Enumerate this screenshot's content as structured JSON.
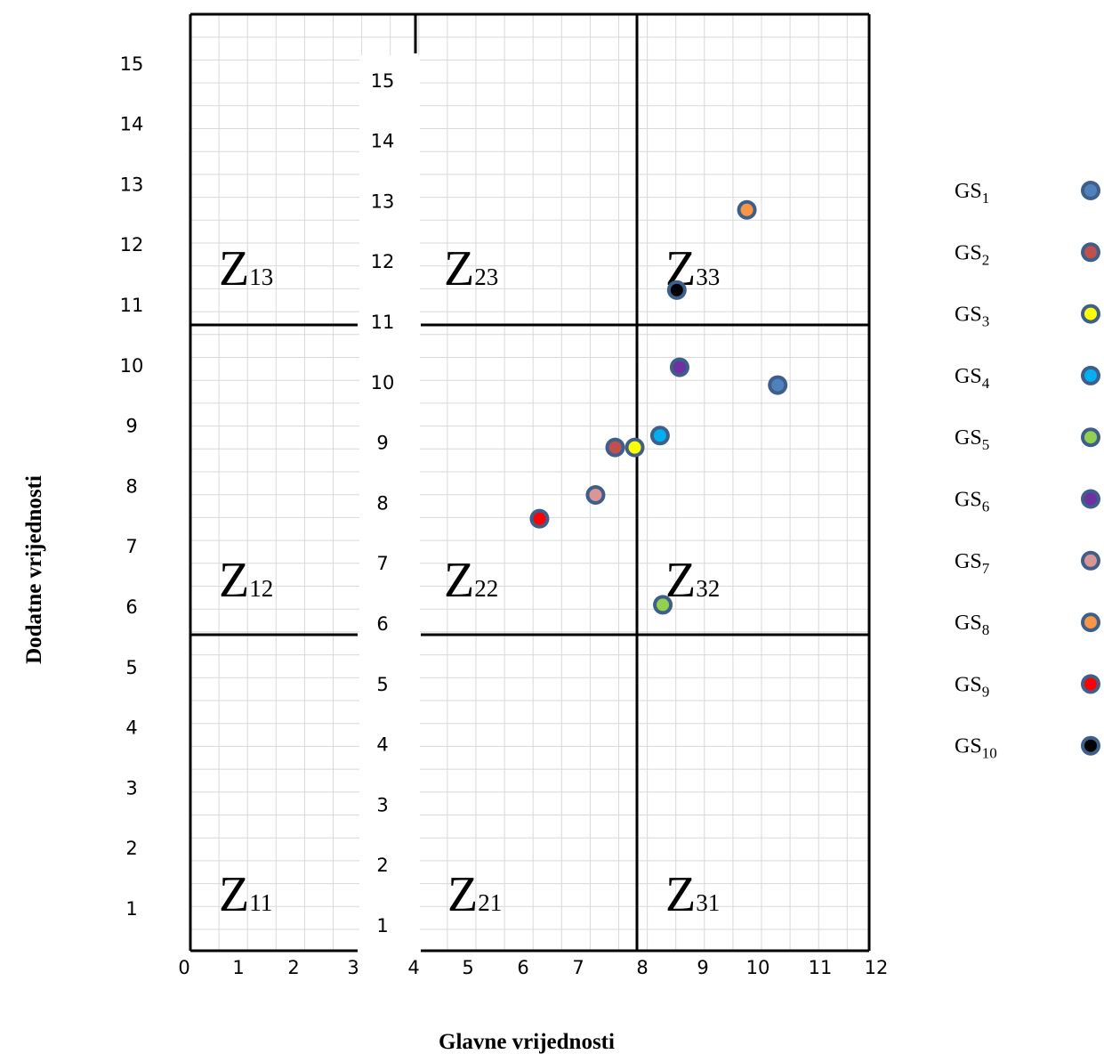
{
  "chart_data": {
    "type": "scatter",
    "xlabel": "Glavne vrijednosti",
    "ylabel": "Dodatne vrijednosti",
    "x_ticks_left": [
      "0",
      "1",
      "2",
      "3"
    ],
    "x_ticks_right": [
      "4",
      "5",
      "6",
      "7",
      "8",
      "9",
      "10",
      "11",
      "12"
    ],
    "y_ticks_left": [
      "1",
      "2",
      "3",
      "4",
      "5",
      "6",
      "7",
      "8",
      "9",
      "10",
      "11",
      "12",
      "13",
      "14",
      "15"
    ],
    "y_ticks_inner": [
      "1",
      "2",
      "3",
      "4",
      "5",
      "6",
      "7",
      "8",
      "9",
      "10",
      "11",
      "12",
      "13",
      "14",
      "15"
    ],
    "zones": [
      {
        "label": "Z",
        "sub": "11"
      },
      {
        "label": "Z",
        "sub": "12"
      },
      {
        "label": "Z",
        "sub": "13"
      },
      {
        "label": "Z",
        "sub": "21"
      },
      {
        "label": "Z",
        "sub": "22"
      },
      {
        "label": "Z",
        "sub": "23"
      },
      {
        "label": "Z",
        "sub": "31"
      },
      {
        "label": "Z",
        "sub": "32"
      },
      {
        "label": "Z",
        "sub": "33"
      }
    ],
    "series": [
      {
        "name": "GS",
        "sub": "1",
        "x": 10.4,
        "y": 9.85,
        "color": "#4f81bd"
      },
      {
        "name": "GS",
        "sub": "2",
        "x": 7.5,
        "y": 8.8,
        "color": "#c0504d"
      },
      {
        "name": "GS",
        "sub": "3",
        "x": 7.85,
        "y": 8.8,
        "color": "#ffff00"
      },
      {
        "name": "GS",
        "sub": "4",
        "x": 8.3,
        "y": 9.0,
        "color": "#00b0f0"
      },
      {
        "name": "GS",
        "sub": "5",
        "x": 8.35,
        "y": 6.15,
        "color": "#92d050"
      },
      {
        "name": "GS",
        "sub": "6",
        "x": 8.65,
        "y": 10.15,
        "color": "#7030a0"
      },
      {
        "name": "GS",
        "sub": "7",
        "x": 7.15,
        "y": 8.0,
        "color": "#d99694"
      },
      {
        "name": "GS",
        "sub": "8",
        "x": 9.85,
        "y": 12.8,
        "color": "#f79646"
      },
      {
        "name": "GS",
        "sub": "9",
        "x": 6.15,
        "y": 7.6,
        "color": "#ff0000"
      },
      {
        "name": "GS",
        "sub": "10",
        "x": 8.6,
        "y": 11.45,
        "color": "#000000"
      }
    ],
    "xlim": [
      0,
      12
    ],
    "ylim": [
      0.5,
      15.5
    ],
    "grid": true,
    "legend_position": "right"
  }
}
